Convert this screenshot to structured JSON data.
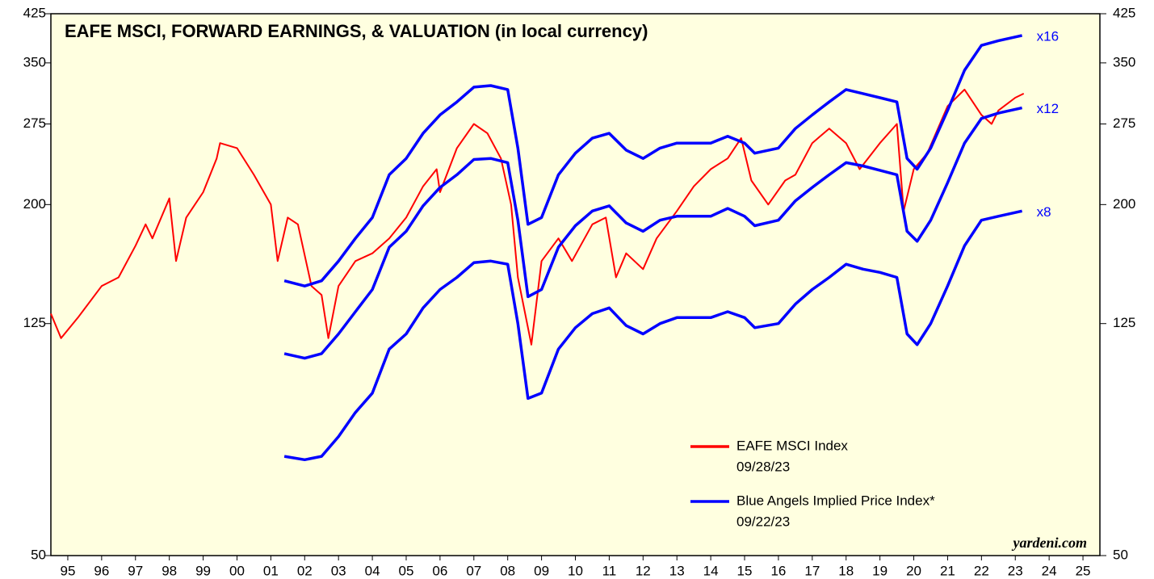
{
  "chart_data": {
    "type": "line",
    "title": "EAFE MSCI, FORWARD EARNINGS, & VALUATION (in local currency)",
    "source": "yardeni.com",
    "log_y": true,
    "ylim": [
      50,
      425
    ],
    "yticks": [
      50,
      125,
      200,
      275,
      350,
      425
    ],
    "xlim": [
      1995,
      2026
    ],
    "xticks": [
      {
        "value": 1995.5,
        "label": "95"
      },
      {
        "value": 1996.5,
        "label": "96"
      },
      {
        "value": 1997.5,
        "label": "97"
      },
      {
        "value": 1998.5,
        "label": "98"
      },
      {
        "value": 1999.5,
        "label": "99"
      },
      {
        "value": 2000.5,
        "label": "00"
      },
      {
        "value": 2001.5,
        "label": "01"
      },
      {
        "value": 2002.5,
        "label": "02"
      },
      {
        "value": 2003.5,
        "label": "03"
      },
      {
        "value": 2004.5,
        "label": "04"
      },
      {
        "value": 2005.5,
        "label": "05"
      },
      {
        "value": 2006.5,
        "label": "06"
      },
      {
        "value": 2007.5,
        "label": "07"
      },
      {
        "value": 2008.5,
        "label": "08"
      },
      {
        "value": 2009.5,
        "label": "09"
      },
      {
        "value": 2010.5,
        "label": "10"
      },
      {
        "value": 2011.5,
        "label": "11"
      },
      {
        "value": 2012.5,
        "label": "12"
      },
      {
        "value": 2013.5,
        "label": "13"
      },
      {
        "value": 2014.5,
        "label": "14"
      },
      {
        "value": 2015.5,
        "label": "15"
      },
      {
        "value": 2016.5,
        "label": "16"
      },
      {
        "value": 2017.5,
        "label": "17"
      },
      {
        "value": 2018.5,
        "label": "18"
      },
      {
        "value": 2019.5,
        "label": "19"
      },
      {
        "value": 2020.5,
        "label": "20"
      },
      {
        "value": 2021.5,
        "label": "21"
      },
      {
        "value": 2022.5,
        "label": "22"
      },
      {
        "value": 2023.5,
        "label": "23"
      },
      {
        "value": 2024.5,
        "label": "24"
      },
      {
        "value": 2025.5,
        "label": "25"
      }
    ],
    "legend": [
      {
        "name": "EAFE MSCI Index",
        "date": "09/28/23",
        "color": "#ff0000"
      },
      {
        "name": "Blue Angels Implied Price Index*",
        "date": "09/22/23",
        "color": "#0000ff"
      }
    ],
    "series": [
      {
        "name": "EAFE MSCI Index",
        "color": "#ff0000",
        "x": [
          1995.0,
          1995.3,
          1995.8,
          1996.5,
          1997.0,
          1997.5,
          1997.8,
          1998.0,
          1998.5,
          1998.7,
          1999.0,
          1999.5,
          1999.9,
          2000.0,
          2000.5,
          2001.0,
          2001.5,
          2001.7,
          2002.0,
          2002.3,
          2002.7,
          2003.0,
          2003.2,
          2003.5,
          2004.0,
          2004.5,
          2005.0,
          2005.5,
          2006.0,
          2006.4,
          2006.5,
          2007.0,
          2007.5,
          2007.9,
          2008.3,
          2008.6,
          2008.8,
          2009.2,
          2009.5,
          2010.0,
          2010.4,
          2011.0,
          2011.4,
          2011.7,
          2012.0,
          2012.5,
          2012.9,
          2013.5,
          2014.0,
          2014.5,
          2015.0,
          2015.4,
          2015.7,
          2016.2,
          2016.7,
          2017.0,
          2017.5,
          2018.0,
          2018.5,
          2018.9,
          2019.5,
          2020.0,
          2020.2,
          2020.5,
          2020.9,
          2021.5,
          2022.0,
          2022.5,
          2022.8,
          2023.0,
          2023.5,
          2023.75
        ],
        "values": [
          130,
          118,
          128,
          145,
          150,
          170,
          185,
          175,
          205,
          160,
          190,
          210,
          240,
          255,
          250,
          225,
          200,
          160,
          190,
          185,
          145,
          140,
          118,
          145,
          160,
          165,
          175,
          190,
          215,
          230,
          210,
          250,
          275,
          265,
          240,
          200,
          150,
          115,
          160,
          175,
          160,
          185,
          190,
          150,
          165,
          155,
          175,
          195,
          215,
          230,
          240,
          260,
          220,
          200,
          220,
          225,
          255,
          270,
          255,
          230,
          255,
          275,
          195,
          230,
          245,
          295,
          315,
          285,
          275,
          290,
          305,
          310
        ]
      },
      {
        "name": "x16",
        "color": "#0000ff",
        "x": [
          2001.9,
          2002.5,
          2003.0,
          2003.5,
          2004.0,
          2004.5,
          2005.0,
          2005.5,
          2006.0,
          2006.5,
          2007.0,
          2007.5,
          2008.0,
          2008.5,
          2008.8,
          2009.1,
          2009.5,
          2010.0,
          2010.5,
          2011.0,
          2011.5,
          2012.0,
          2012.5,
          2013.0,
          2013.5,
          2014.0,
          2014.5,
          2015.0,
          2015.5,
          2015.8,
          2016.5,
          2017.0,
          2017.5,
          2018.0,
          2018.5,
          2019.0,
          2019.5,
          2020.0,
          2020.3,
          2020.6,
          2021.0,
          2021.5,
          2022.0,
          2022.5,
          2023.0,
          2023.7
        ],
        "values": [
          148,
          145,
          148,
          160,
          175,
          190,
          225,
          240,
          265,
          285,
          300,
          318,
          320,
          315,
          250,
          185,
          190,
          225,
          245,
          260,
          265,
          248,
          240,
          250,
          255,
          255,
          255,
          262,
          255,
          245,
          250,
          270,
          285,
          300,
          315,
          310,
          305,
          300,
          240,
          230,
          250,
          290,
          340,
          375,
          382,
          390
        ]
      },
      {
        "name": "x12",
        "color": "#0000ff",
        "x": [
          2001.9,
          2002.5,
          2003.0,
          2003.5,
          2004.0,
          2004.5,
          2005.0,
          2005.5,
          2006.0,
          2006.5,
          2007.0,
          2007.5,
          2008.0,
          2008.5,
          2008.8,
          2009.1,
          2009.5,
          2010.0,
          2010.5,
          2011.0,
          2011.5,
          2012.0,
          2012.5,
          2013.0,
          2013.5,
          2014.0,
          2014.5,
          2015.0,
          2015.5,
          2015.8,
          2016.5,
          2017.0,
          2017.5,
          2018.0,
          2018.5,
          2019.0,
          2019.5,
          2020.0,
          2020.3,
          2020.6,
          2021.0,
          2021.5,
          2022.0,
          2022.5,
          2023.0,
          2023.7
        ],
        "values": [
          111,
          109,
          111,
          120,
          131,
          143,
          169,
          180,
          199,
          214,
          225,
          239,
          240,
          236,
          188,
          139,
          143,
          169,
          184,
          195,
          199,
          186,
          180,
          188,
          191,
          191,
          191,
          197,
          191,
          184,
          188,
          203,
          214,
          225,
          236,
          233,
          229,
          225,
          180,
          173,
          188,
          218,
          255,
          281,
          287,
          293
        ]
      },
      {
        "name": "x8",
        "color": "#0000ff",
        "x": [
          2001.9,
          2002.5,
          2003.0,
          2003.5,
          2004.0,
          2004.5,
          2005.0,
          2005.5,
          2006.0,
          2006.5,
          2007.0,
          2007.5,
          2008.0,
          2008.5,
          2008.8,
          2009.1,
          2009.5,
          2010.0,
          2010.5,
          2011.0,
          2011.5,
          2012.0,
          2012.5,
          2013.0,
          2013.5,
          2014.0,
          2014.5,
          2015.0,
          2015.5,
          2015.8,
          2016.5,
          2017.0,
          2017.5,
          2018.0,
          2018.5,
          2019.0,
          2019.5,
          2020.0,
          2020.3,
          2020.6,
          2021.0,
          2021.5,
          2022.0,
          2022.5,
          2023.0,
          2023.7
        ],
        "values": [
          74,
          73,
          74,
          80,
          88,
          95,
          113,
          120,
          133,
          143,
          150,
          159,
          160,
          158,
          125,
          93,
          95,
          113,
          123,
          130,
          133,
          124,
          120,
          125,
          128,
          128,
          128,
          131,
          128,
          123,
          125,
          135,
          143,
          150,
          158,
          155,
          153,
          150,
          120,
          115,
          125,
          145,
          170,
          188,
          191,
          195
        ]
      }
    ]
  }
}
